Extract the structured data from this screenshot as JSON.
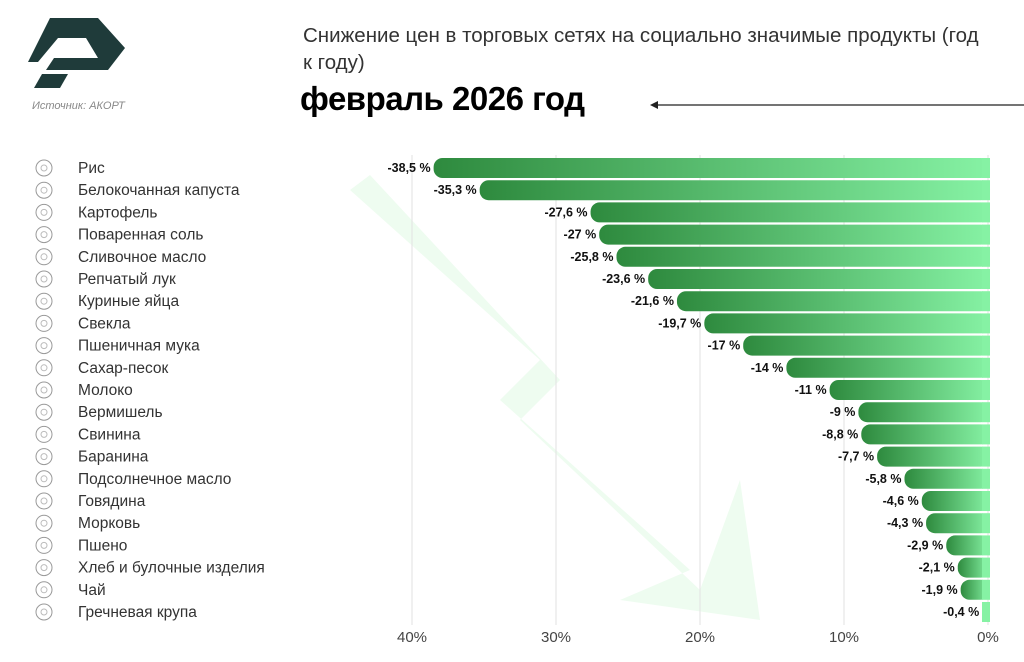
{
  "header": {
    "title": "Снижение цен в торговых сетях на социально значимые продукты (год к году)",
    "subtitle": "февраль 2026 год",
    "source": "Источник: АКОРТ",
    "logo_text": "АКОРТ"
  },
  "colors": {
    "bar_dark": "#2e8a3e",
    "bar_light": "#86f2a4",
    "logo": "#1f3b3a",
    "watermark_arrow": "#eefcf0"
  },
  "chart_data": {
    "type": "bar",
    "orientation": "horizontal",
    "title": "Снижение цен в торговых сетях на социально значимые продукты (год к году)",
    "categories": [
      "Рис",
      "Белокочанная капуста",
      "Картофель",
      "Поваренная соль",
      "Сливочное масло",
      "Репчатый лук",
      "Куриные яйца",
      "Свекла",
      "Пшеничная мука",
      "Сахар-песок",
      "Молоко",
      "Вермишель",
      "Свинина",
      "Баранина",
      "Подсолнечное масло",
      "Говядина",
      "Морковь",
      "Пшено",
      "Хлеб и булочные изделия",
      "Чай",
      "Гречневая крупа"
    ],
    "values": [
      -38.5,
      -35.3,
      -27.6,
      -27,
      -25.8,
      -23.6,
      -21.6,
      -19.7,
      -17,
      -14,
      -11,
      -9,
      -8.8,
      -7.7,
      -5.8,
      -4.6,
      -4.3,
      -2.9,
      -2.1,
      -1.9,
      -0.4
    ],
    "value_labels": [
      "-38,5 %",
      "-35,3 %",
      "-27,6 %",
      "-27 %",
      "-25,8 %",
      "-23,6 %",
      "-21,6 %",
      "-19,7 %",
      "-17 %",
      "-14 %",
      "-11 %",
      "-9 %",
      "-8,8 %",
      "-7,7 %",
      "-5,8 %",
      "-4,6 %",
      "-4,3 %",
      "-2,9 %",
      "-2,1 %",
      "-1,9 %",
      "-0,4 %"
    ],
    "icons": [
      "rice-icon",
      "cabbage-icon",
      "potato-icon",
      "salt-icon",
      "butter-icon",
      "onion-icon",
      "eggs-icon",
      "beet-icon",
      "flour-icon",
      "sugar-icon",
      "milk-icon",
      "vermicelli-icon",
      "pork-icon",
      "mutton-icon",
      "sunflower-oil-icon",
      "beef-icon",
      "carrot-icon",
      "millet-icon",
      "bread-icon",
      "tea-icon",
      "buckwheat-icon"
    ],
    "x_ticks": [
      40,
      30,
      20,
      10,
      0
    ],
    "x_tick_labels": [
      "40%",
      "30%",
      "20%",
      "10%",
      "0%"
    ],
    "xlim": [
      40,
      0
    ],
    "grid": "vertical",
    "xlabel": "",
    "ylabel": ""
  }
}
